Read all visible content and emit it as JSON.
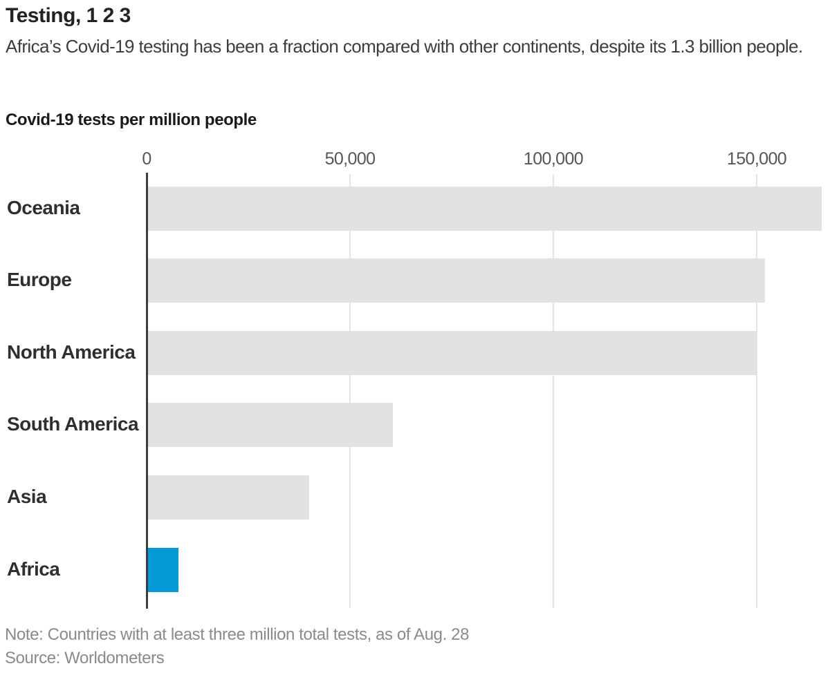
{
  "header": {
    "title": "Testing, 1 2 3",
    "subtitle": "Africa’s Covid-19 testing has been a fraction compared with other continents, despite its 1.3 billion people."
  },
  "chart_data": {
    "type": "bar",
    "orientation": "horizontal",
    "title": "Covid-19 tests per million people",
    "categories": [
      "Oceania",
      "Europe",
      "North America",
      "South America",
      "Asia",
      "Africa"
    ],
    "values": [
      166000,
      152000,
      150000,
      60500,
      40000,
      7800
    ],
    "highlight_category": "Africa",
    "xlabel": "",
    "ylabel": "",
    "xlim": [
      0,
      168000
    ],
    "x_ticks": [
      {
        "label": "0",
        "value": 0
      },
      {
        "label": "50,000",
        "value": 50000
      },
      {
        "label": "100,000",
        "value": 100000
      },
      {
        "label": "150,000",
        "value": 150000
      }
    ],
    "grid": true,
    "legend": false,
    "colors": {
      "bar_default": "#e0e2e4",
      "bar_highlight": "#0599d8",
      "axis_line": "#3c3c3c",
      "gridline": "#e4e4e4"
    }
  },
  "footer": {
    "note": "Note: Countries with at least three million total tests, as of Aug. 28",
    "source": "Source: Worldometers"
  }
}
